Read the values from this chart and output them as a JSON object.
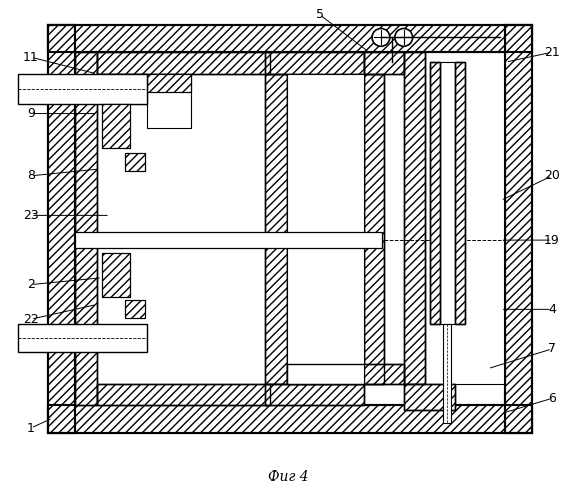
{
  "title": "Фиг 4",
  "bg": "#ffffff",
  "lc": "#000000",
  "hatch": "////",
  "label_fs": 9,
  "caption_fs": 10
}
